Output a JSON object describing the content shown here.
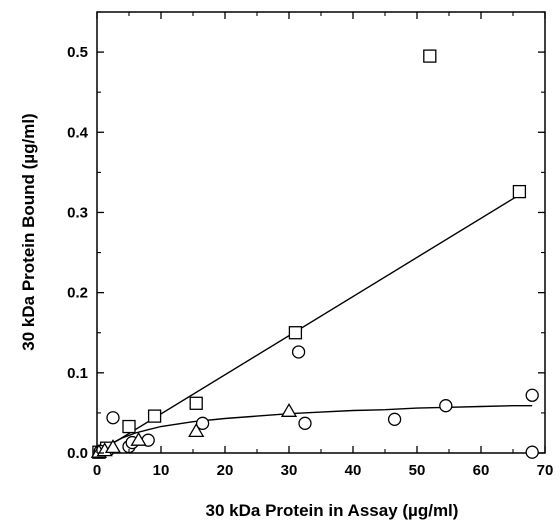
{
  "chart_data": {
    "type": "scatter",
    "xlabel": "30 kDa Protein in Assay (µg/ml)",
    "ylabel": "30 kDa Protein Bound (µg/ml)",
    "xlim": [
      0,
      70
    ],
    "ylim": [
      0,
      0.55
    ],
    "xticks": [
      "0",
      "10",
      "20",
      "30",
      "40",
      "50",
      "60",
      "70"
    ],
    "yticks": [
      "0.0",
      "0.1",
      "0.2",
      "0.3",
      "0.4",
      "0.5"
    ],
    "xtick_values": [
      0,
      10,
      20,
      30,
      40,
      50,
      60,
      70
    ],
    "ytick_values": [
      0,
      0.1,
      0.2,
      0.3,
      0.4,
      0.5
    ],
    "grid": false,
    "legend": "none",
    "series": [
      {
        "marker": "square",
        "points": [
          {
            "x": 0.3,
            "y": 0.001
          },
          {
            "x": 1.5,
            "y": 0.006
          },
          {
            "x": 5,
            "y": 0.033
          },
          {
            "x": 9,
            "y": 0.046
          },
          {
            "x": 15.5,
            "y": 0.062
          },
          {
            "x": 31,
            "y": 0.15
          },
          {
            "x": 52,
            "y": 0.495
          },
          {
            "x": 66,
            "y": 0.326
          }
        ]
      },
      {
        "marker": "circle",
        "points": [
          {
            "x": 0.5,
            "y": 0.002
          },
          {
            "x": 2.5,
            "y": 0.044
          },
          {
            "x": 5,
            "y": 0.008
          },
          {
            "x": 5.5,
            "y": 0.013
          },
          {
            "x": 8,
            "y": 0.016
          },
          {
            "x": 16.5,
            "y": 0.037
          },
          {
            "x": 31.5,
            "y": 0.126
          },
          {
            "x": 32.5,
            "y": 0.037
          },
          {
            "x": 46.5,
            "y": 0.042
          },
          {
            "x": 54.5,
            "y": 0.059
          },
          {
            "x": 68,
            "y": 0.072
          },
          {
            "x": 68,
            "y": 0.001
          }
        ]
      },
      {
        "marker": "triangle",
        "points": [
          {
            "x": 0.3,
            "y": 0.001
          },
          {
            "x": 1.2,
            "y": 0.003
          },
          {
            "x": 2.5,
            "y": 0.007
          },
          {
            "x": 6.5,
            "y": 0.016
          },
          {
            "x": 15.5,
            "y": 0.027
          },
          {
            "x": 30,
            "y": 0.052
          }
        ]
      }
    ],
    "fit_lines": [
      {
        "shape": "linear",
        "points": [
          {
            "x": 0,
            "y": 0
          },
          {
            "x": 66,
            "y": 0.322
          }
        ]
      },
      {
        "shape": "hyperbolic",
        "points": [
          {
            "x": 0,
            "y": 0
          },
          {
            "x": 2,
            "y": 0.011
          },
          {
            "x": 4,
            "y": 0.019
          },
          {
            "x": 6,
            "y": 0.025
          },
          {
            "x": 8,
            "y": 0.029
          },
          {
            "x": 10,
            "y": 0.033
          },
          {
            "x": 15,
            "y": 0.039
          },
          {
            "x": 20,
            "y": 0.043
          },
          {
            "x": 25,
            "y": 0.046
          },
          {
            "x": 30,
            "y": 0.049
          },
          {
            "x": 35,
            "y": 0.051
          },
          {
            "x": 40,
            "y": 0.053
          },
          {
            "x": 45,
            "y": 0.054
          },
          {
            "x": 50,
            "y": 0.056
          },
          {
            "x": 55,
            "y": 0.057
          },
          {
            "x": 60,
            "y": 0.058
          },
          {
            "x": 65,
            "y": 0.059
          },
          {
            "x": 68,
            "y": 0.059
          }
        ]
      }
    ]
  }
}
